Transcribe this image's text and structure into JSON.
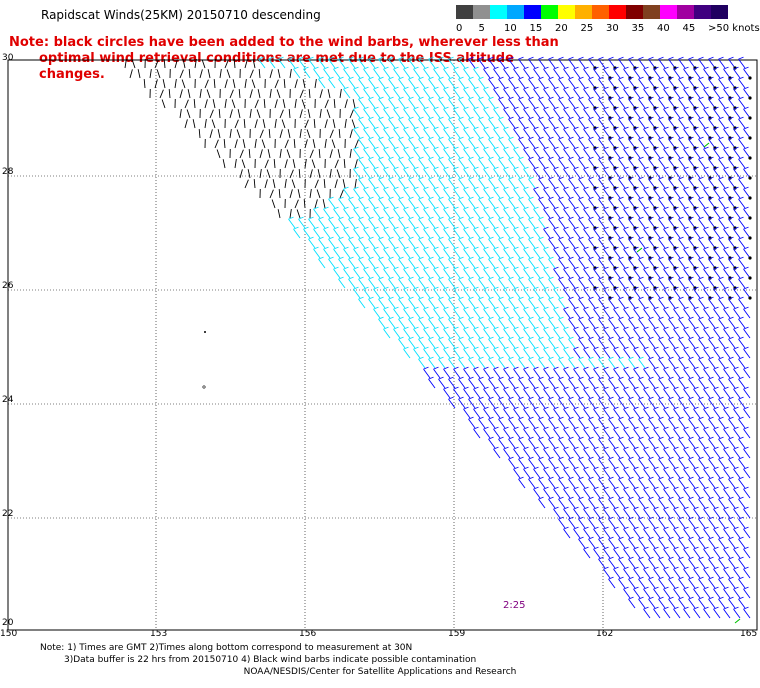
{
  "title": "Rapidscat Winds(25KM) 20150710 descending",
  "note": {
    "line1": "Note: black circles have been added to the wind barbs, wherever less than",
    "line2": "optimal wind retrieval conditions are met due to the ISS altitude changes."
  },
  "speed_scale": {
    "labels": [
      "0",
      "5",
      "10",
      "15",
      "20",
      "25",
      "30",
      "35",
      "40",
      "45",
      ">50 knots"
    ],
    "colors": [
      "#404040",
      "#909090",
      "#00ffff",
      "#00a8ff",
      "#0000ff",
      "#00ff00",
      "#ffff00",
      "#ffb000",
      "#ff6000",
      "#ff0000",
      "#800000",
      "#804020",
      "#ff00ff",
      "#a000a0",
      "#400080",
      "#200060"
    ]
  },
  "axes": {
    "lat_labels": [
      "30",
      "28",
      "26",
      "24",
      "22",
      "20"
    ],
    "lon_labels": [
      "150",
      "153",
      "156",
      "159",
      "162",
      "165"
    ]
  },
  "time_label": "2:25",
  "footnote": {
    "line1": "Note: 1) Times are GMT 2)Times along bottom correspond to measurement at 30N",
    "line2": "3)Data buffer is 22 hrs from 20150710 4) Black wind barbs indicate possible contamination"
  },
  "credit": "NOAA/NESDIS/Center for Satellite Applications and Research",
  "colors": {
    "light_wind": "#000000",
    "cyan_wind": "#00e0ff",
    "blue_wind": "#0000ff",
    "flag_circle": "#000000",
    "note_text": "#e00000",
    "time_text": "#800080",
    "green_wind": "#00c000"
  }
}
